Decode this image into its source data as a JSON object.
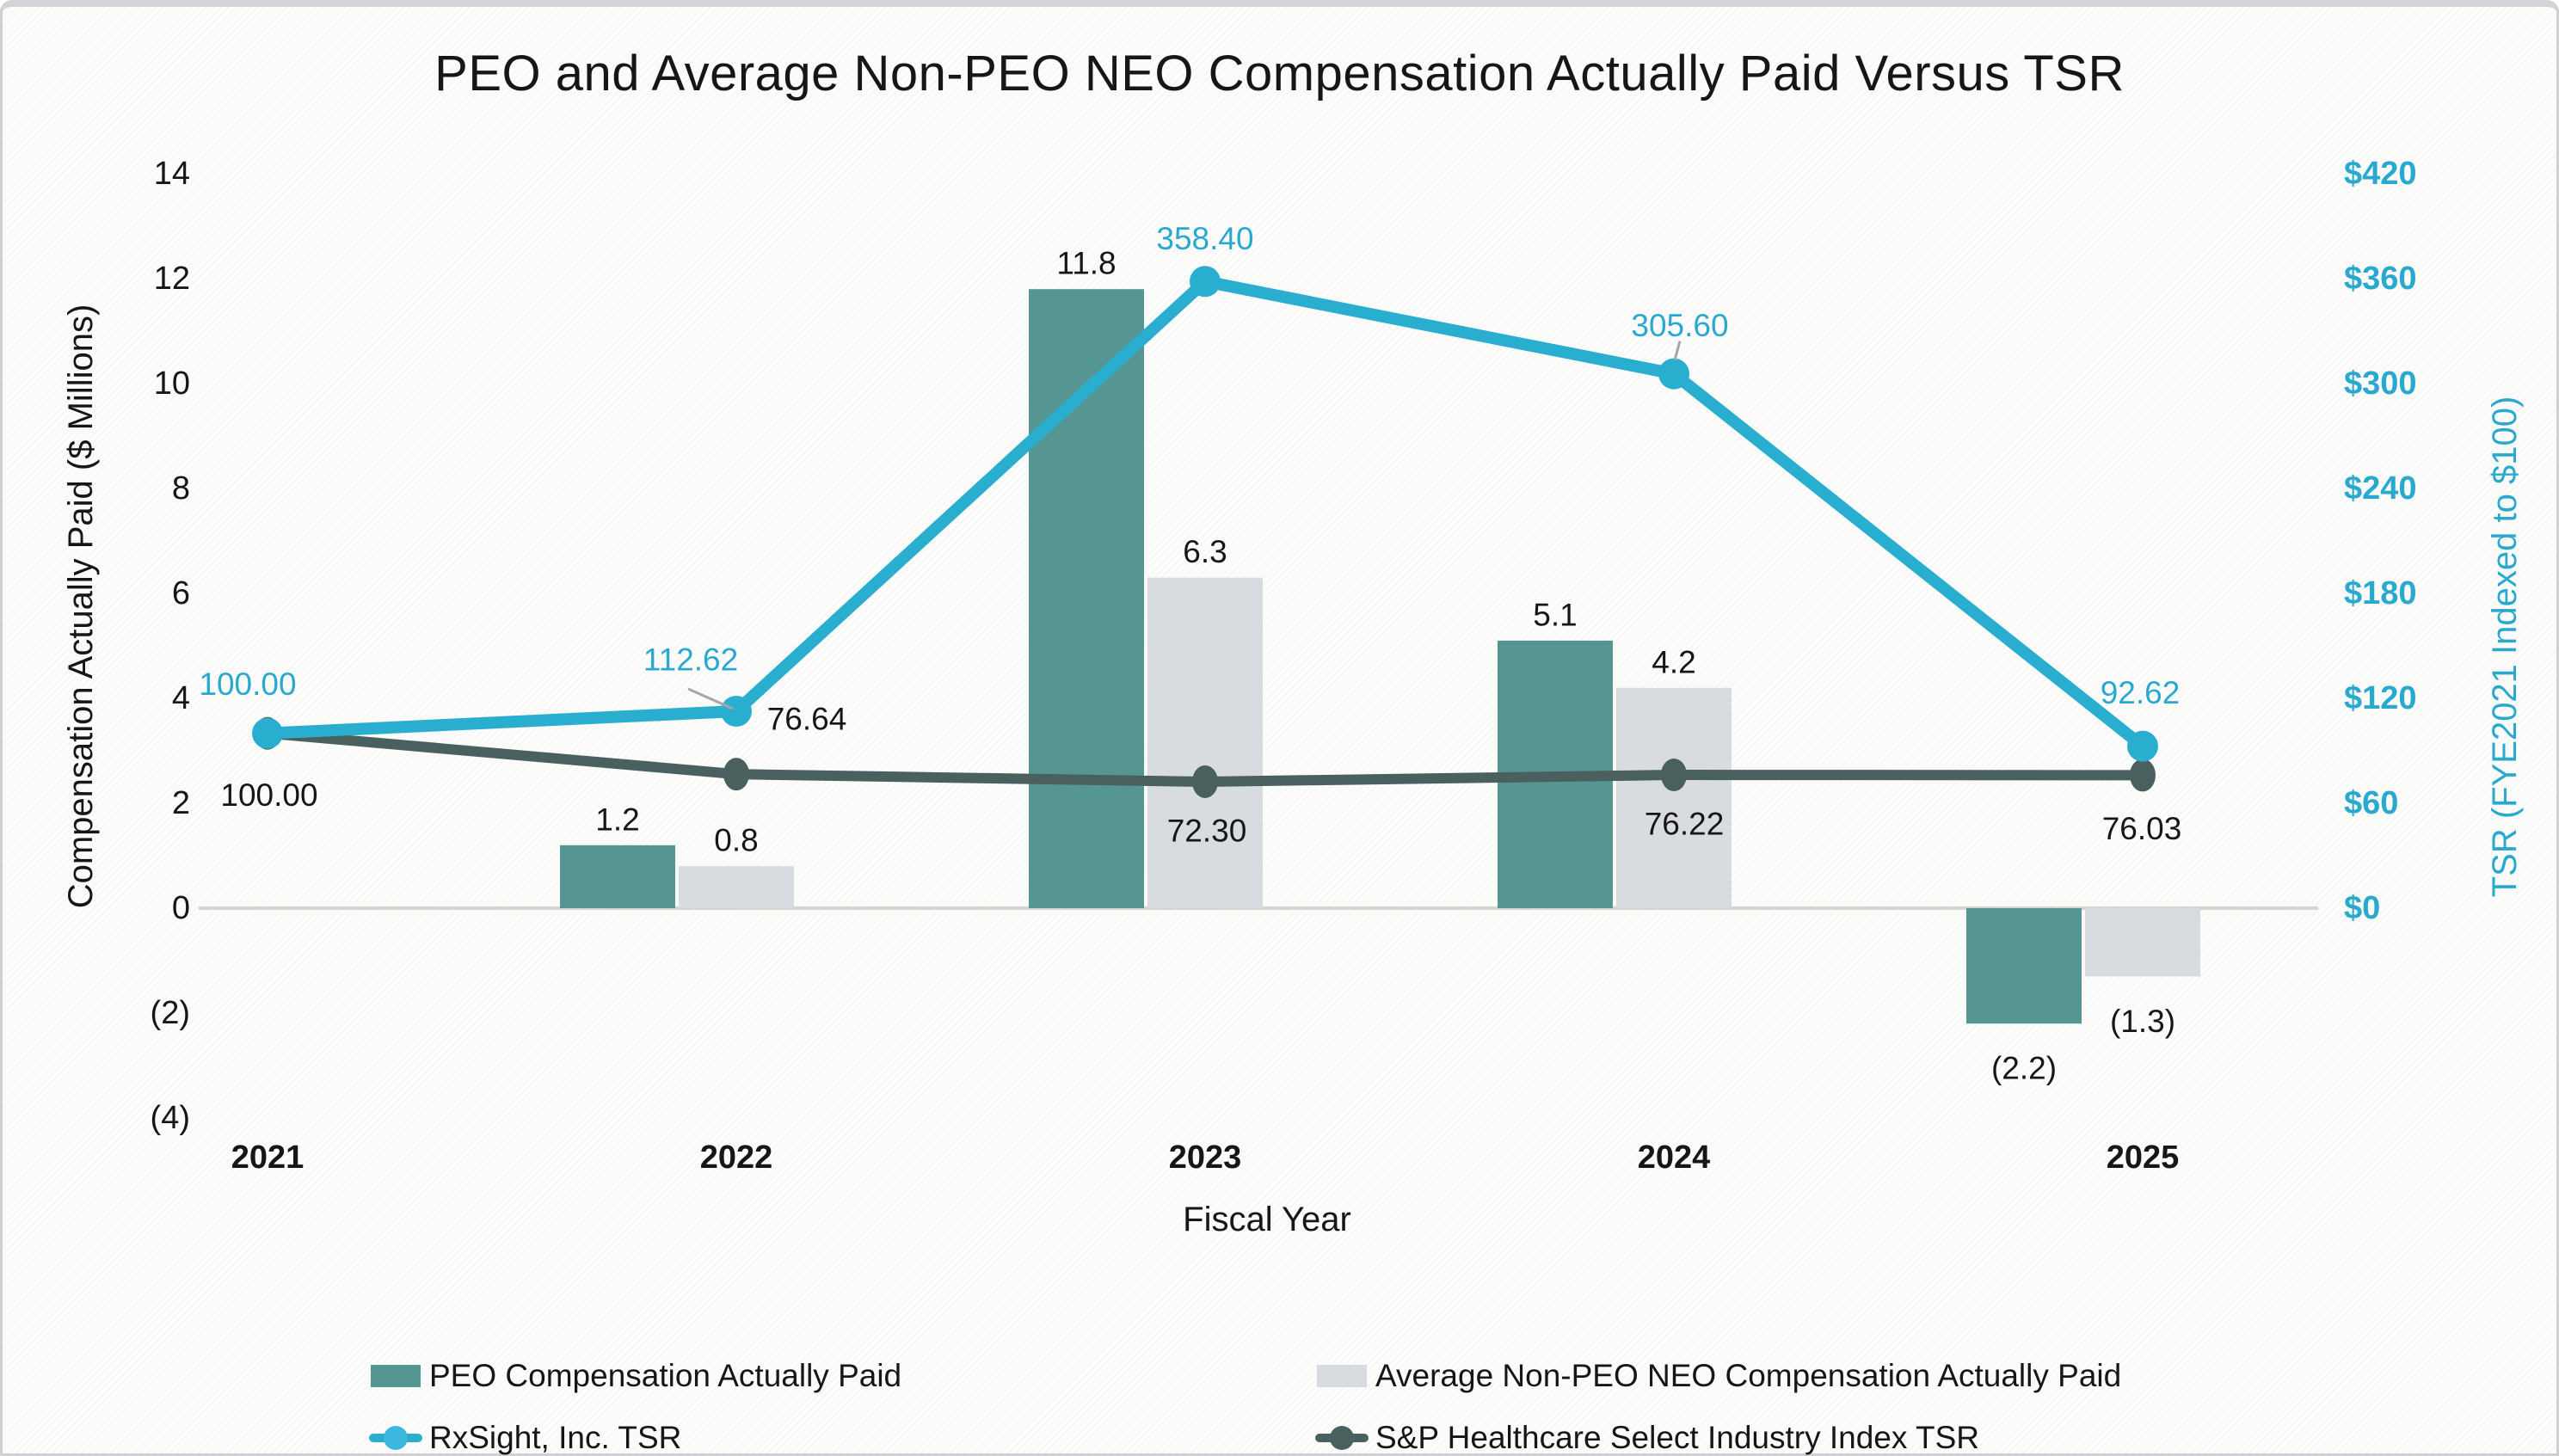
{
  "title": "PEO and Average Non-PEO NEO Compensation Actually Paid Versus TSR",
  "colors": {
    "peo_bar": "#569692",
    "neo_bar": "#d8dce0",
    "rxsight_line": "#29aed0",
    "rxsight_marker": "#3bb8dd",
    "sp_line": "#4a605e",
    "right_axis_text": "#2aa9cf",
    "text": "#161616",
    "zero_line": "#d9d2ce",
    "leader_line": "#a6a6a6"
  },
  "chart_data": {
    "type": "combo_bar_line",
    "categories": [
      "2021",
      "2022",
      "2023",
      "2024",
      "2025"
    ],
    "bar_series": [
      {
        "name": "PEO Compensation Actually Paid",
        "axis": "left",
        "values": [
          null,
          1.2,
          11.8,
          5.1,
          -2.2
        ],
        "labels": [
          "",
          "1.2",
          "11.8",
          "5.1",
          "(2.2)"
        ]
      },
      {
        "name": "Average Non-PEO NEO Compensation Actually Paid",
        "axis": "left",
        "values": [
          null,
          0.8,
          6.3,
          4.2,
          -1.3
        ],
        "labels": [
          "",
          "0.8",
          "6.3",
          "4.2",
          "(1.3)"
        ]
      }
    ],
    "line_series": [
      {
        "name": "RxSight, Inc. TSR",
        "axis": "right",
        "values": [
          100.0,
          112.62,
          358.4,
          305.6,
          92.62
        ],
        "labels": [
          "100.00",
          "112.62",
          "358.40",
          "305.60",
          "92.62"
        ]
      },
      {
        "name": "S&P Healthcare Select Industry Index TSR",
        "axis": "right",
        "values": [
          100.0,
          76.64,
          72.3,
          76.22,
          76.03
        ],
        "labels": [
          "100.00",
          "76.64",
          "72.30",
          "76.22",
          "76.03"
        ]
      }
    ],
    "left_axis": {
      "title": "Compensation Actually Paid ($ Millions)",
      "tick_labels": [
        "14",
        "12",
        "10",
        "8",
        "6",
        "4",
        "2",
        "0",
        "(2)",
        "(4)"
      ],
      "tick_values": [
        14,
        12,
        10,
        8,
        6,
        4,
        2,
        0,
        -2,
        -4
      ],
      "range": [
        -4,
        14
      ],
      "grid": "zero-line-only"
    },
    "right_axis": {
      "title": "TSR (FYE2021 Indexed to $100)",
      "tick_labels": [
        "$420",
        "$360",
        "$300",
        "$240",
        "$180",
        "$120",
        "$60",
        "$0"
      ],
      "tick_values": [
        420,
        360,
        300,
        240,
        180,
        120,
        60,
        0
      ],
      "range": [
        0,
        420
      ]
    },
    "x_axis": {
      "title": "Fiscal Year"
    },
    "legend_position": "bottom-two-columns"
  }
}
